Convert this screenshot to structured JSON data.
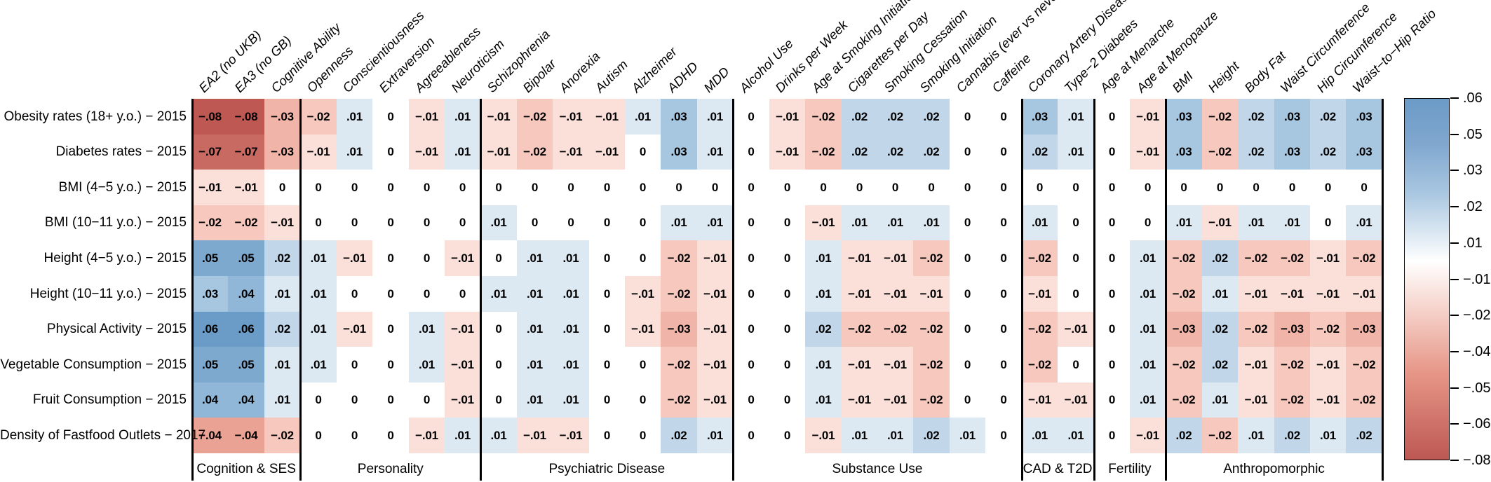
{
  "chart_data": {
    "type": "heatmap",
    "rows": [
      "Obesity rates (18+ y.o.) − 2015",
      "Diabetes rates − 2015",
      "BMI (4−5 y.o.) − 2015",
      "BMI (10−11 y.o.) − 2015",
      "Height (4−5 y.o.) − 2015",
      "Height (10−11 y.o.) − 2015",
      "Physical Activity − 2015",
      "Vegetable Consumption − 2015",
      "Fruit Consumption − 2015",
      "Density of Fastfood Outlets − 2017"
    ],
    "columns": [
      "EA2 (no UKB)",
      "EA3 (no GB)",
      "Cognitive Ability",
      "Openness",
      "Conscientiousness",
      "Extraversion",
      "Agreeableness",
      "Neuroticism",
      "Schizophrenia",
      "Bipolar",
      "Anorexia",
      "Autism",
      "Alzheimer",
      "ADHD",
      "MDD",
      "Alcohol Use",
      "Drinks per Week",
      "Age at Smoking Initiation",
      "Cigarettes per Day",
      "Smoking Cessation",
      "Smoking Initiation",
      "Cannabis (ever vs never)",
      "Caffeine",
      "Coronary Artery Disease",
      "Type−2 Diabetes",
      "Age at Menarche",
      "Age at Menopauze",
      "BMI",
      "Height",
      "Body Fat",
      "Waist Circumference",
      "Hip Circumference",
      "Waist−to−Hip Ratio"
    ],
    "groups": [
      {
        "label": "Cognition & SES",
        "from": 0,
        "to": 3
      },
      {
        "label": "Personality",
        "from": 3,
        "to": 8
      },
      {
        "label": "Psychiatric Disease",
        "from": 8,
        "to": 15
      },
      {
        "label": "Substance Use",
        "from": 15,
        "to": 23
      },
      {
        "label": "CAD & T2D",
        "from": 23,
        "to": 25
      },
      {
        "label": "Fertility",
        "from": 25,
        "to": 27
      },
      {
        "label": "Anthropomorphic",
        "from": 27,
        "to": 33
      }
    ],
    "values": [
      [
        -0.08,
        -0.08,
        -0.03,
        -0.02,
        0.01,
        0,
        -0.01,
        0.01,
        -0.01,
        -0.02,
        -0.01,
        -0.01,
        0.01,
        0.03,
        0.01,
        0,
        -0.01,
        -0.02,
        0.02,
        0.02,
        0.02,
        0,
        0,
        0.03,
        0.01,
        0,
        -0.01,
        0.03,
        -0.02,
        0.02,
        0.03,
        0.02,
        0.03
      ],
      [
        -0.07,
        -0.07,
        -0.03,
        -0.01,
        0.01,
        0,
        -0.01,
        0.01,
        -0.01,
        -0.02,
        -0.01,
        -0.01,
        0,
        0.03,
        0.01,
        0,
        -0.01,
        -0.02,
        0.02,
        0.02,
        0.02,
        0,
        0,
        0.02,
        0.01,
        0,
        -0.01,
        0.03,
        -0.02,
        0.02,
        0.03,
        0.02,
        0.03
      ],
      [
        -0.01,
        -0.01,
        0,
        0,
        0,
        0,
        0,
        0,
        0,
        0,
        0,
        0,
        0,
        0,
        0,
        0,
        0,
        0,
        0,
        0,
        0,
        0,
        0,
        0,
        0,
        0,
        0,
        0,
        0,
        0,
        0,
        0,
        0
      ],
      [
        -0.02,
        -0.02,
        -0.01,
        0,
        0,
        0,
        0,
        0,
        0.01,
        0,
        0,
        0,
        0,
        0.01,
        0.01,
        0,
        0,
        -0.01,
        0.01,
        0.01,
        0.01,
        0,
        0,
        0.01,
        0,
        0,
        0,
        0.01,
        -0.01,
        0.01,
        0.01,
        0,
        0.01
      ],
      [
        0.05,
        0.05,
        0.02,
        0.01,
        -0.01,
        0,
        0,
        -0.01,
        0,
        0.01,
        0.01,
        0,
        0,
        -0.02,
        -0.01,
        0,
        0,
        0.01,
        -0.01,
        -0.01,
        -0.02,
        0,
        0,
        -0.02,
        0,
        0,
        0.01,
        -0.02,
        0.02,
        -0.02,
        -0.02,
        -0.01,
        -0.02
      ],
      [
        0.03,
        0.04,
        0.01,
        0.01,
        0,
        0,
        0,
        0,
        0.01,
        0.01,
        0.01,
        0,
        -0.01,
        -0.02,
        -0.01,
        0,
        0,
        0.01,
        -0.01,
        -0.01,
        -0.01,
        0,
        0,
        -0.01,
        0,
        0,
        0.01,
        -0.02,
        0.01,
        -0.01,
        -0.01,
        -0.01,
        -0.01
      ],
      [
        0.06,
        0.06,
        0.02,
        0.01,
        -0.01,
        0,
        0.01,
        -0.01,
        0,
        0.01,
        0.01,
        0,
        -0.01,
        -0.03,
        -0.01,
        0,
        0,
        0.02,
        -0.02,
        -0.02,
        -0.02,
        0,
        0,
        -0.02,
        -0.01,
        0,
        0.01,
        -0.03,
        0.02,
        -0.02,
        -0.03,
        -0.02,
        -0.03
      ],
      [
        0.05,
        0.05,
        0.01,
        0.01,
        0,
        0,
        0.01,
        -0.01,
        0,
        0.01,
        0.01,
        0,
        0,
        -0.02,
        -0.01,
        0,
        0,
        0.01,
        -0.01,
        -0.01,
        -0.02,
        0,
        0,
        -0.02,
        0,
        0,
        0.01,
        -0.02,
        0.02,
        -0.01,
        -0.02,
        -0.01,
        -0.02
      ],
      [
        0.04,
        0.04,
        0.01,
        0,
        0,
        0,
        0,
        -0.01,
        0,
        0.01,
        0.01,
        0,
        0,
        -0.02,
        -0.01,
        0,
        0,
        0.01,
        -0.01,
        -0.01,
        -0.02,
        0,
        0,
        -0.01,
        -0.01,
        0,
        0.01,
        -0.02,
        0.01,
        -0.01,
        -0.02,
        -0.01,
        -0.02
      ],
      [
        -0.04,
        -0.04,
        -0.02,
        0,
        0,
        0,
        -0.01,
        0.01,
        0.01,
        -0.01,
        -0.01,
        0,
        0,
        0.02,
        0.01,
        0,
        0,
        -0.01,
        0.01,
        0.01,
        0.02,
        0.01,
        0,
        0.01,
        0.01,
        0,
        -0.01,
        0.02,
        -0.02,
        0.01,
        0.02,
        0.01,
        0.02
      ]
    ],
    "colorbar": {
      "ticks": [
        ".06",
        ".05",
        ".03",
        ".02",
        ".01",
        "−.01",
        "−.02",
        "−.04",
        "−.05",
        "−.06",
        "−.08"
      ],
      "max": 0.06,
      "min": -0.08,
      "max_color": "#6b9bc7",
      "mid_color": "#ffffff",
      "min_color": "#bd5853",
      "position": "right"
    },
    "xlabel": "",
    "ylabel": "",
    "title": ""
  }
}
